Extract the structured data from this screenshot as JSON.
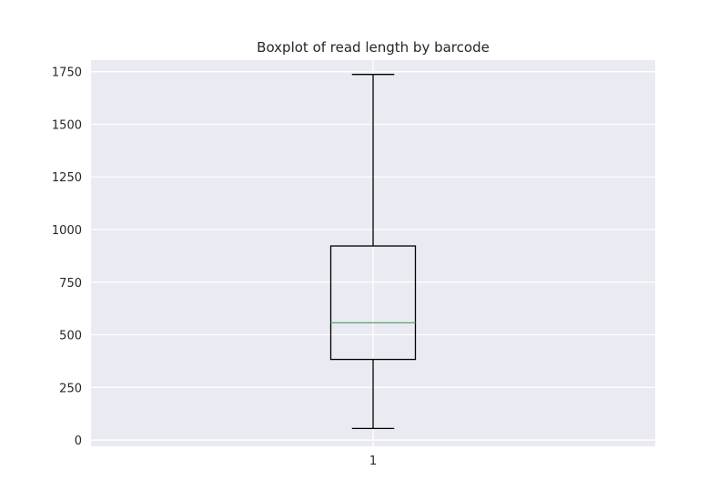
{
  "chart_data": {
    "type": "box",
    "title": "Boxplot of read length by barcode",
    "xlabel": "",
    "ylabel": "",
    "categories": [
      "1"
    ],
    "boxes": [
      {
        "category": "1",
        "whisker_low": 55,
        "q1": 383,
        "median": 557,
        "q3": 922,
        "whisker_high": 1737
      }
    ],
    "ylim": [
      -30,
      1805
    ],
    "yticks": [
      0,
      250,
      500,
      750,
      1000,
      1250,
      1500,
      1750
    ],
    "ytick_labels": [
      "0",
      "250",
      "500",
      "750",
      "1000",
      "1250",
      "1500",
      "1750"
    ],
    "grid": true,
    "legend": "none",
    "colors": {
      "plot_background": "#eaeaf2",
      "grid": "#ffffff",
      "box_line": "#000000",
      "median_line": "#55a868",
      "text": "#262626"
    }
  }
}
